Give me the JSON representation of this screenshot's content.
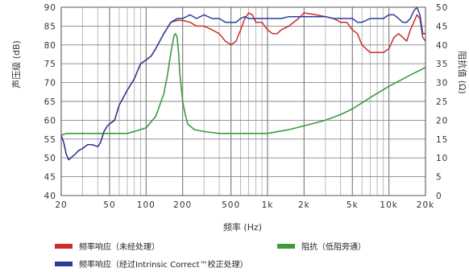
{
  "chart_data": {
    "type": "line",
    "xlabel": "频率 (Hz)",
    "ylabel_left": "声压级 (dB)",
    "ylabel_right": "阻抗值 (Ω)",
    "x_scale": "log",
    "xlim": [
      20,
      20000
    ],
    "ylim_left": [
      40,
      90
    ],
    "ylim_right": [
      0,
      50
    ],
    "grid": true,
    "x_ticks": [
      {
        "value": 20,
        "label": "20"
      },
      {
        "value": 50,
        "label": "50"
      },
      {
        "value": 100,
        "label": "100"
      },
      {
        "value": 200,
        "label": "200"
      },
      {
        "value": 500,
        "label": "500"
      },
      {
        "value": 1000,
        "label": "1k"
      },
      {
        "value": 2000,
        "label": "2k"
      },
      {
        "value": 5000,
        "label": "5k"
      },
      {
        "value": 10000,
        "label": "10k"
      },
      {
        "value": 20000,
        "label": "20k"
      }
    ],
    "y_ticks_left": [
      "40",
      "45",
      "50",
      "55",
      "60",
      "65",
      "70",
      "75",
      "80",
      "85",
      "90"
    ],
    "y_ticks_right": [
      "0",
      "5",
      "10",
      "15",
      "20",
      "25",
      "30",
      "35",
      "40",
      "45",
      "50"
    ],
    "series": [
      {
        "name": "频率响应（未经处理）",
        "color": "#cc2b2b",
        "axis": "left",
        "x": [
          20,
          21,
          22,
          23,
          24,
          26,
          28,
          30,
          33,
          36,
          40,
          42,
          45,
          48,
          50,
          55,
          60,
          70,
          80,
          90,
          100,
          110,
          120,
          140,
          160,
          180,
          200,
          230,
          260,
          300,
          350,
          400,
          450,
          500,
          550,
          600,
          650,
          700,
          750,
          800,
          900,
          1000,
          1100,
          1200,
          1300,
          1500,
          1800,
          2000,
          2500,
          3000,
          3500,
          4000,
          4500,
          5000,
          5500,
          6000,
          7000,
          8000,
          9000,
          10000,
          11000,
          12000,
          13000,
          14000,
          15000,
          16000,
          17000,
          18000,
          19000,
          20000
        ],
        "y": [
          56,
          54,
          51,
          49.5,
          50,
          51,
          52,
          52.5,
          53.5,
          53.5,
          53,
          54,
          57,
          58.5,
          59,
          60,
          64,
          68,
          71,
          75,
          76,
          77,
          79,
          83,
          86,
          86.5,
          86.5,
          86,
          85,
          85,
          84,
          83,
          81,
          80,
          81,
          84,
          87,
          88.5,
          88,
          86,
          86,
          84,
          83,
          83,
          84,
          85,
          87,
          88.5,
          88,
          87.5,
          87,
          86,
          86,
          84,
          83,
          80,
          78,
          78,
          78,
          79,
          82,
          83,
          82,
          81,
          84,
          86,
          88,
          87,
          82,
          81
        ]
      },
      {
        "name": "频率响应（经过Intrinsic Correct™校正处理）",
        "color": "#2b3d9b",
        "axis": "left",
        "x": [
          20,
          21,
          22,
          23,
          24,
          26,
          28,
          30,
          33,
          36,
          40,
          42,
          45,
          48,
          50,
          55,
          60,
          70,
          80,
          90,
          100,
          110,
          120,
          140,
          160,
          180,
          200,
          230,
          260,
          300,
          350,
          400,
          450,
          500,
          550,
          600,
          650,
          700,
          750,
          800,
          900,
          1000,
          1100,
          1200,
          1300,
          1500,
          1800,
          2000,
          2500,
          3000,
          3500,
          4000,
          4500,
          5000,
          5500,
          6000,
          7000,
          8000,
          9000,
          10000,
          11000,
          12000,
          13000,
          14000,
          15000,
          16000,
          17000,
          18000,
          19000,
          20000
        ],
        "y": [
          56,
          54,
          51,
          49.5,
          50,
          51,
          52,
          52.5,
          53.5,
          53.5,
          53,
          54,
          57,
          58.5,
          59,
          60,
          64,
          68,
          71,
          75,
          76,
          77,
          79,
          83,
          86,
          87,
          87,
          88,
          87,
          88,
          87,
          87,
          86,
          86,
          86,
          87,
          87.5,
          87,
          87,
          87,
          87,
          87,
          87,
          87,
          87,
          87.5,
          87.5,
          87.5,
          87.5,
          87.5,
          87,
          87,
          87,
          87,
          86,
          86,
          87,
          87,
          87,
          88,
          88,
          87,
          86,
          86,
          87,
          89,
          90,
          88,
          83,
          83
        ]
      },
      {
        "name": "阻抗（低阻旁通）",
        "color": "#3f9a3f",
        "axis": "right",
        "x": [
          20,
          22,
          25,
          30,
          40,
          50,
          60,
          70,
          80,
          100,
          120,
          140,
          150,
          160,
          170,
          175,
          180,
          185,
          190,
          200,
          210,
          220,
          250,
          300,
          400,
          500,
          700,
          1000,
          1500,
          2000,
          3000,
          4000,
          5000,
          7000,
          10000,
          15000,
          20000
        ],
        "y": [
          16,
          16.5,
          16.5,
          16.5,
          16.5,
          16.5,
          16.5,
          16.5,
          17,
          18,
          21,
          27,
          32,
          38,
          42.5,
          43,
          42,
          38,
          32,
          25,
          21.5,
          19,
          17.5,
          17,
          16.5,
          16.5,
          16.5,
          16.5,
          17.5,
          18.5,
          20,
          21.5,
          23,
          26,
          29,
          32,
          34
        ]
      }
    ],
    "legend": [
      {
        "label": "频率响应（未经处理）",
        "color": "#cc2b2b"
      },
      {
        "label": "阻抗（低阻旁通）",
        "color": "#3f9a3f"
      },
      {
        "label": "频率响应（经过Intrinsic Correct™校正处理）",
        "color": "#2b3d9b"
      }
    ]
  }
}
